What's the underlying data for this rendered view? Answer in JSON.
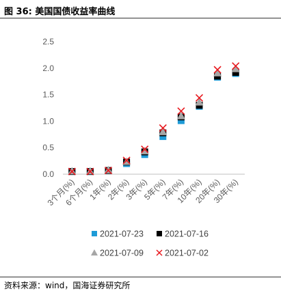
{
  "figure": {
    "title": "图 36: 美国国债收益率曲线",
    "source": "资料来源：wind，国海证券研究所"
  },
  "colors": {
    "s0723": "#1e9bd7",
    "s0716": "#000000",
    "s0709": "#a6a6a6",
    "s0702": "#e8181e",
    "grid": "#d9d9d9",
    "axis": "#bfbfbf"
  },
  "chart_data": {
    "type": "scatter",
    "title": "",
    "xlabel": "",
    "ylabel": "",
    "categories": [
      "3个月(%)",
      "6个月(%)",
      "1年(%)",
      "2年(%)",
      "3年(%)",
      "5年(%)",
      "7年(%)",
      "10年(%)",
      "20年(%)",
      "30年(%)"
    ],
    "ylim": [
      0.0,
      2.5
    ],
    "yticks": [
      "0.0",
      "0.5",
      "1.0",
      "1.5",
      "2.0",
      "2.5"
    ],
    "grid": false,
    "legend_position": "bottom",
    "series": [
      {
        "name": "2021-07-23",
        "marker": "square",
        "values": [
          0.05,
          0.05,
          0.07,
          0.2,
          0.37,
          0.71,
          1.01,
          1.28,
          1.83,
          1.9
        ]
      },
      {
        "name": "2021-07-16",
        "marker": "square",
        "values": [
          0.05,
          0.05,
          0.07,
          0.23,
          0.42,
          0.78,
          1.08,
          1.3,
          1.85,
          1.92
        ]
      },
      {
        "name": "2021-07-09",
        "marker": "triangle",
        "values": [
          0.06,
          0.06,
          0.08,
          0.24,
          0.44,
          0.8,
          1.1,
          1.36,
          1.91,
          1.99
        ]
      },
      {
        "name": "2021-07-02",
        "marker": "x",
        "values": [
          0.05,
          0.05,
          0.07,
          0.26,
          0.47,
          0.87,
          1.19,
          1.44,
          1.97,
          2.04
        ]
      }
    ]
  }
}
